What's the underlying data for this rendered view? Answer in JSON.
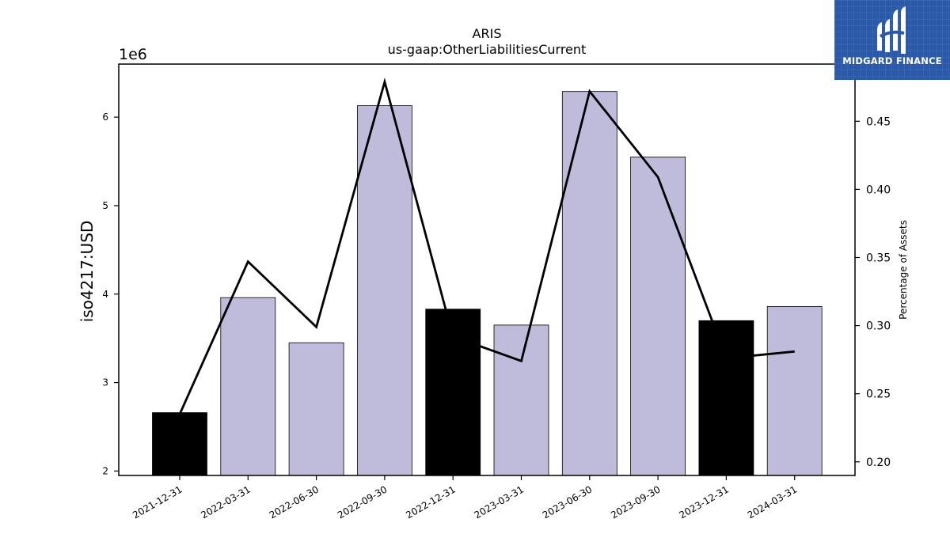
{
  "chart_data": {
    "type": "bar",
    "title": "ARIS",
    "subtitle": "us-gaap:OtherLiabilitiesCurrent",
    "ylabel": "iso4217:USD",
    "y_offset_label": "1e6",
    "y2label": "Percentage of Assets",
    "categories": [
      "2021-12-31",
      "2022-03-31",
      "2022-06-30",
      "2022-09-30",
      "2022-12-31",
      "2023-03-31",
      "2023-06-30",
      "2023-09-30",
      "2023-12-31",
      "2024-03-31"
    ],
    "series": [
      {
        "type": "bar",
        "axis": "left",
        "values": [
          2660000,
          3960000,
          3450000,
          6130000,
          3830000,
          3650000,
          6290000,
          5550000,
          3700000,
          3860000
        ],
        "colors": [
          "#000000",
          "#bebbdb",
          "#bebbdb",
          "#bebbdb",
          "#000000",
          "#bebbdb",
          "#bebbdb",
          "#bebbdb",
          "#000000",
          "#bebbdb"
        ]
      },
      {
        "type": "line",
        "axis": "right",
        "values": [
          0.235,
          0.347,
          0.299,
          0.479,
          0.292,
          0.274,
          0.472,
          0.409,
          0.276,
          0.281
        ],
        "color": "#000000"
      }
    ],
    "ylim": [
      1.95,
      6.6
    ],
    "yticks": [
      "2",
      "3",
      "4",
      "5",
      "6"
    ],
    "y2lim": [
      0.19,
      0.492
    ],
    "y2ticks": [
      "0.20",
      "0.25",
      "0.30",
      "0.35",
      "0.40",
      "0.45"
    ],
    "grid": false
  },
  "logo": {
    "text": "MIDGARD FINANCE"
  }
}
